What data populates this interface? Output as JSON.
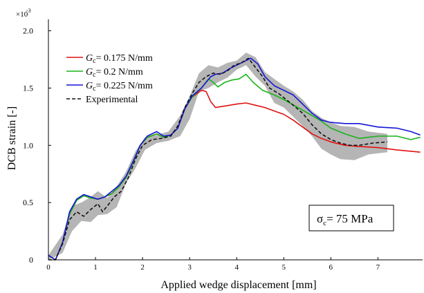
{
  "chart_data": {
    "type": "line",
    "xlabel": "Applied wedge displacement   [mm]",
    "ylabel": "DCB strain  [-]",
    "y_scale_label": "×10",
    "y_scale_exp": "-3",
    "xlim": [
      0,
      7.95
    ],
    "ylim": [
      0,
      2.1
    ],
    "x_ticks": [
      "0",
      "1",
      "2",
      "3",
      "4",
      "5",
      "6",
      "7"
    ],
    "y_ticks": [
      "0",
      "0.5",
      "1.0",
      "1.5",
      "2.0"
    ],
    "grid": false,
    "legend_position": "top-left",
    "annotation": {
      "sym": "σ",
      "sub": "c",
      "rest": "= 75 MPa"
    },
    "series": [
      {
        "name": "G",
        "name_sub": "c",
        "name_rest": "= 0.175 N/mm",
        "color": "#e01010",
        "dash": "",
        "points": [
          [
            0,
            0.04
          ],
          [
            0.15,
            0
          ],
          [
            0.3,
            0.15
          ],
          [
            0.45,
            0.4
          ],
          [
            0.6,
            0.52
          ],
          [
            0.75,
            0.56
          ],
          [
            0.9,
            0.54
          ],
          [
            1.05,
            0.53
          ],
          [
            1.2,
            0.55
          ],
          [
            1.35,
            0.58
          ],
          [
            1.5,
            0.64
          ],
          [
            1.65,
            0.72
          ],
          [
            1.8,
            0.85
          ],
          [
            1.95,
            1.0
          ],
          [
            2.1,
            1.07
          ],
          [
            2.3,
            1.1
          ],
          [
            2.45,
            1.07
          ],
          [
            2.6,
            1.09
          ],
          [
            2.75,
            1.15
          ],
          [
            2.9,
            1.32
          ],
          [
            3.05,
            1.42
          ],
          [
            3.25,
            1.48
          ],
          [
            3.35,
            1.47
          ],
          [
            3.45,
            1.38
          ],
          [
            3.55,
            1.33
          ],
          [
            3.7,
            1.34
          ],
          [
            3.85,
            1.35
          ],
          [
            4.0,
            1.36
          ],
          [
            4.2,
            1.37
          ],
          [
            4.4,
            1.35
          ],
          [
            4.6,
            1.33
          ],
          [
            4.8,
            1.3
          ],
          [
            5.0,
            1.27
          ],
          [
            5.2,
            1.22
          ],
          [
            5.4,
            1.16
          ],
          [
            5.6,
            1.1
          ],
          [
            5.8,
            1.06
          ],
          [
            6.0,
            1.03
          ],
          [
            6.3,
            1.0
          ],
          [
            6.6,
            0.99
          ],
          [
            7.0,
            0.98
          ],
          [
            7.4,
            0.96
          ],
          [
            7.9,
            0.94
          ]
        ]
      },
      {
        "name": "G",
        "name_sub": "c",
        "name_rest": "= 0.2 N/mm",
        "color": "#16b416",
        "dash": "",
        "points": [
          [
            0,
            0.04
          ],
          [
            0.15,
            0
          ],
          [
            0.3,
            0.15
          ],
          [
            0.45,
            0.4
          ],
          [
            0.6,
            0.52
          ],
          [
            0.75,
            0.56
          ],
          [
            0.9,
            0.54
          ],
          [
            1.05,
            0.53
          ],
          [
            1.2,
            0.55
          ],
          [
            1.35,
            0.58
          ],
          [
            1.5,
            0.64
          ],
          [
            1.65,
            0.72
          ],
          [
            1.8,
            0.85
          ],
          [
            1.95,
            1.0
          ],
          [
            2.1,
            1.07
          ],
          [
            2.3,
            1.1
          ],
          [
            2.45,
            1.07
          ],
          [
            2.6,
            1.09
          ],
          [
            2.75,
            1.15
          ],
          [
            2.9,
            1.32
          ],
          [
            3.05,
            1.42
          ],
          [
            3.25,
            1.5
          ],
          [
            3.4,
            1.58
          ],
          [
            3.5,
            1.55
          ],
          [
            3.6,
            1.51
          ],
          [
            3.75,
            1.55
          ],
          [
            3.9,
            1.57
          ],
          [
            4.05,
            1.58
          ],
          [
            4.2,
            1.62
          ],
          [
            4.35,
            1.55
          ],
          [
            4.55,
            1.48
          ],
          [
            4.8,
            1.44
          ],
          [
            5.0,
            1.4
          ],
          [
            5.3,
            1.33
          ],
          [
            5.6,
            1.26
          ],
          [
            5.8,
            1.21
          ],
          [
            6.0,
            1.15
          ],
          [
            6.3,
            1.1
          ],
          [
            6.6,
            1.06
          ],
          [
            7.0,
            1.08
          ],
          [
            7.4,
            1.08
          ],
          [
            7.7,
            1.05
          ],
          [
            7.9,
            1.07
          ]
        ]
      },
      {
        "name": "G",
        "name_sub": "c",
        "name_rest": "= 0.225 N/mm",
        "color": "#1414d8",
        "dash": "",
        "points": [
          [
            0,
            0.04
          ],
          [
            0.15,
            0
          ],
          [
            0.3,
            0.15
          ],
          [
            0.45,
            0.42
          ],
          [
            0.6,
            0.53
          ],
          [
            0.75,
            0.57
          ],
          [
            0.9,
            0.55
          ],
          [
            1.05,
            0.53
          ],
          [
            1.2,
            0.55
          ],
          [
            1.35,
            0.6
          ],
          [
            1.5,
            0.65
          ],
          [
            1.65,
            0.73
          ],
          [
            1.8,
            0.86
          ],
          [
            1.95,
            1.0
          ],
          [
            2.1,
            1.08
          ],
          [
            2.3,
            1.12
          ],
          [
            2.45,
            1.08
          ],
          [
            2.6,
            1.09
          ],
          [
            2.75,
            1.15
          ],
          [
            2.9,
            1.32
          ],
          [
            3.05,
            1.43
          ],
          [
            3.25,
            1.5
          ],
          [
            3.45,
            1.6
          ],
          [
            3.55,
            1.62
          ],
          [
            3.7,
            1.63
          ],
          [
            3.85,
            1.67
          ],
          [
            4.0,
            1.7
          ],
          [
            4.15,
            1.73
          ],
          [
            4.3,
            1.76
          ],
          [
            4.45,
            1.71
          ],
          [
            4.6,
            1.6
          ],
          [
            4.8,
            1.52
          ],
          [
            5.0,
            1.48
          ],
          [
            5.2,
            1.44
          ],
          [
            5.4,
            1.36
          ],
          [
            5.6,
            1.28
          ],
          [
            5.8,
            1.22
          ],
          [
            6.0,
            1.2
          ],
          [
            6.3,
            1.19
          ],
          [
            6.6,
            1.19
          ],
          [
            7.0,
            1.16
          ],
          [
            7.4,
            1.15
          ],
          [
            7.7,
            1.12
          ],
          [
            7.9,
            1.09
          ]
        ]
      },
      {
        "name": "Experimental",
        "color": "#111111",
        "dash": "5,3",
        "points": [
          [
            0,
            0
          ],
          [
            0.15,
            0
          ],
          [
            0.3,
            0.14
          ],
          [
            0.45,
            0.35
          ],
          [
            0.6,
            0.42
          ],
          [
            0.75,
            0.38
          ],
          [
            0.9,
            0.44
          ],
          [
            1.05,
            0.49
          ],
          [
            1.15,
            0.42
          ],
          [
            1.25,
            0.47
          ],
          [
            1.4,
            0.55
          ],
          [
            1.55,
            0.6
          ],
          [
            1.7,
            0.72
          ],
          [
            1.85,
            0.88
          ],
          [
            2.0,
            1.0
          ],
          [
            2.2,
            1.05
          ],
          [
            2.4,
            1.06
          ],
          [
            2.6,
            1.08
          ],
          [
            2.75,
            1.17
          ],
          [
            2.9,
            1.33
          ],
          [
            3.05,
            1.45
          ],
          [
            3.2,
            1.55
          ],
          [
            3.35,
            1.6
          ],
          [
            3.5,
            1.63
          ],
          [
            3.65,
            1.62
          ],
          [
            3.8,
            1.65
          ],
          [
            3.95,
            1.7
          ],
          [
            4.1,
            1.72
          ],
          [
            4.25,
            1.76
          ],
          [
            4.4,
            1.68
          ],
          [
            4.55,
            1.6
          ],
          [
            4.7,
            1.5
          ],
          [
            4.9,
            1.45
          ],
          [
            5.05,
            1.4
          ],
          [
            5.2,
            1.35
          ],
          [
            5.4,
            1.28
          ],
          [
            5.6,
            1.18
          ],
          [
            5.8,
            1.1
          ],
          [
            6.0,
            1.05
          ],
          [
            6.2,
            1.02
          ],
          [
            6.4,
            1.0
          ],
          [
            6.6,
            1.0
          ],
          [
            6.9,
            1.02
          ],
          [
            7.2,
            1.03
          ]
        ]
      }
    ],
    "band": {
      "color": "#a8a8a8",
      "upper": [
        [
          0,
          0.04
        ],
        [
          0.3,
          0.22
        ],
        [
          0.5,
          0.47
        ],
        [
          0.7,
          0.5
        ],
        [
          0.9,
          0.55
        ],
        [
          1.05,
          0.6
        ],
        [
          1.25,
          0.54
        ],
        [
          1.45,
          0.64
        ],
        [
          1.65,
          0.77
        ],
        [
          1.85,
          0.95
        ],
        [
          2.05,
          1.07
        ],
        [
          2.3,
          1.09
        ],
        [
          2.55,
          1.12
        ],
        [
          2.8,
          1.26
        ],
        [
          3.0,
          1.43
        ],
        [
          3.2,
          1.63
        ],
        [
          3.4,
          1.7
        ],
        [
          3.6,
          1.68
        ],
        [
          3.8,
          1.72
        ],
        [
          4.0,
          1.74
        ],
        [
          4.2,
          1.81
        ],
        [
          4.4,
          1.77
        ],
        [
          4.6,
          1.64
        ],
        [
          4.8,
          1.58
        ],
        [
          5.0,
          1.52
        ],
        [
          5.2,
          1.47
        ],
        [
          5.4,
          1.4
        ],
        [
          5.6,
          1.3
        ],
        [
          5.8,
          1.24
        ],
        [
          6.0,
          1.2
        ],
        [
          6.2,
          1.17
        ],
        [
          6.5,
          1.16
        ],
        [
          6.8,
          1.12
        ],
        [
          7.2,
          1.1
        ]
      ],
      "lower": [
        [
          7.2,
          0.94
        ],
        [
          6.8,
          0.92
        ],
        [
          6.5,
          0.87
        ],
        [
          6.2,
          0.88
        ],
        [
          6.0,
          0.92
        ],
        [
          5.8,
          0.97
        ],
        [
          5.6,
          1.08
        ],
        [
          5.4,
          1.17
        ],
        [
          5.2,
          1.25
        ],
        [
          5.0,
          1.33
        ],
        [
          4.8,
          1.37
        ],
        [
          4.6,
          1.52
        ],
        [
          4.4,
          1.6
        ],
        [
          4.2,
          1.7
        ],
        [
          4.0,
          1.66
        ],
        [
          3.8,
          1.59
        ],
        [
          3.6,
          1.55
        ],
        [
          3.4,
          1.5
        ],
        [
          3.2,
          1.47
        ],
        [
          3.0,
          1.23
        ],
        [
          2.8,
          1.08
        ],
        [
          2.55,
          1.04
        ],
        [
          2.3,
          1.02
        ],
        [
          2.05,
          0.96
        ],
        [
          1.85,
          0.8
        ],
        [
          1.65,
          0.67
        ],
        [
          1.45,
          0.46
        ],
        [
          1.25,
          0.4
        ],
        [
          1.05,
          0.39
        ],
        [
          0.9,
          0.33
        ],
        [
          0.7,
          0.34
        ],
        [
          0.5,
          0.25
        ],
        [
          0.3,
          0.06
        ],
        [
          0,
          0
        ]
      ]
    }
  }
}
